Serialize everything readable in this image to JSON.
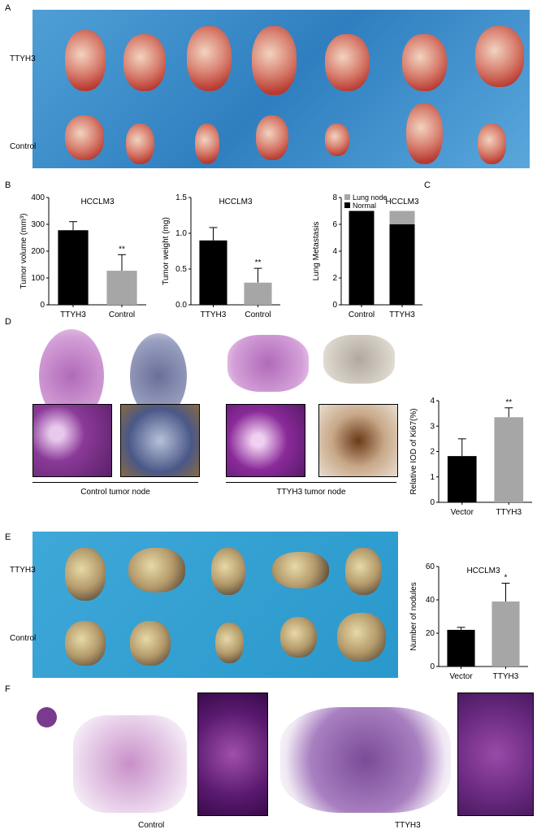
{
  "panels": {
    "A": "A",
    "B": "B",
    "C": "C",
    "D": "D",
    "E": "E",
    "F": "F"
  },
  "panel_a": {
    "row_labels": [
      "TTYH3",
      "Control"
    ]
  },
  "panel_d": {
    "captions": [
      "Control tumor node",
      "TTYH3 tumor node"
    ]
  },
  "panel_e": {
    "row_labels": [
      "TTYH3",
      "Control"
    ]
  },
  "panel_f": {
    "captions": [
      "Control",
      "TTYH3"
    ]
  },
  "colors": {
    "black": "#000000",
    "gray": "#a6a6a6"
  },
  "chart_data": [
    {
      "id": "b1",
      "type": "bar",
      "title": "HCCLM3",
      "ylabel": "Tumor volume (mm³)",
      "categories": [
        "TTYH3",
        "Control"
      ],
      "values": [
        278,
        127
      ],
      "errors": [
        32,
        60
      ],
      "significance": [
        "",
        "**"
      ],
      "ylim": [
        0,
        400
      ],
      "yticks": [
        0,
        100,
        200,
        300,
        400
      ],
      "colors": [
        "#000000",
        "#a6a6a6"
      ]
    },
    {
      "id": "b2",
      "type": "bar",
      "title": "HCCLM3",
      "ylabel": "Tumor weight (mg)",
      "categories": [
        "TTYH3",
        "Control"
      ],
      "values": [
        0.9,
        0.31
      ],
      "errors": [
        0.18,
        0.2
      ],
      "significance": [
        "",
        "**"
      ],
      "ylim": [
        0,
        1.5
      ],
      "yticks": [
        "0.0",
        "0.5",
        "1.0",
        "1.5"
      ],
      "colors": [
        "#000000",
        "#a6a6a6"
      ]
    },
    {
      "id": "c",
      "type": "stacked-bar",
      "title": "HCCLM3",
      "ylabel": "Lung Metastasis",
      "categories": [
        "Control",
        "TTYH3"
      ],
      "series": [
        {
          "name": "Normal",
          "values": [
            7,
            6
          ],
          "color": "#000000"
        },
        {
          "name": "Lung node",
          "values": [
            0,
            1
          ],
          "color": "#a6a6a6"
        }
      ],
      "ylim": [
        0,
        8
      ],
      "yticks": [
        0,
        2,
        4,
        6,
        8
      ],
      "legend": "top-left"
    },
    {
      "id": "d",
      "type": "bar",
      "title": "",
      "ylabel": "Relative IOD of Ki67(%)",
      "categories": [
        "Vector",
        "TTYH3"
      ],
      "values": [
        1.82,
        3.35
      ],
      "errors": [
        0.68,
        0.37
      ],
      "significance": [
        "",
        "**"
      ],
      "ylim": [
        0,
        4
      ],
      "yticks": [
        0,
        1,
        2,
        3,
        4
      ],
      "colors": [
        "#000000",
        "#a6a6a6"
      ]
    },
    {
      "id": "e",
      "type": "bar",
      "title": "HCCLM3",
      "ylabel": "Number of nodules",
      "categories": [
        "Vector",
        "TTYH3"
      ],
      "values": [
        22,
        39
      ],
      "errors": [
        1.5,
        11
      ],
      "significance": [
        "",
        "*"
      ],
      "ylim": [
        0,
        60
      ],
      "yticks": [
        0,
        20,
        40,
        60
      ],
      "colors": [
        "#000000",
        "#a6a6a6"
      ]
    }
  ]
}
